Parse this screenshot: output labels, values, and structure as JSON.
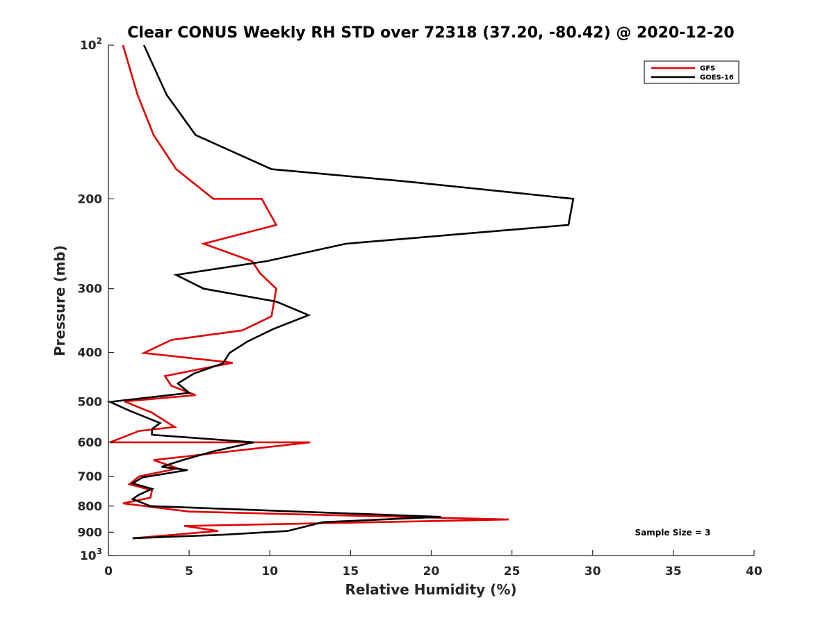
{
  "chart_data": {
    "type": "line",
    "title": "Clear CONUS Weekly RH STD over 72318 (37.20, -80.42) @ 2020-12-20",
    "xlabel": "Relative Humidity (%)",
    "ylabel": "Pressure (mb)",
    "xlim": [
      0,
      40
    ],
    "ylim": [
      100,
      1000
    ],
    "yscale": "log",
    "y_reversed": true,
    "xticks": [
      0,
      5,
      10,
      15,
      20,
      25,
      30,
      35,
      40
    ],
    "yticks": [
      {
        "value": 100,
        "label": "10",
        "sup": "2"
      },
      {
        "value": 200,
        "label": "200"
      },
      {
        "value": 300,
        "label": "300"
      },
      {
        "value": 400,
        "label": "400"
      },
      {
        "value": 500,
        "label": "500"
      },
      {
        "value": 600,
        "label": "600"
      },
      {
        "value": 700,
        "label": "700"
      },
      {
        "value": 800,
        "label": "800"
      },
      {
        "value": 900,
        "label": "900"
      },
      {
        "value": 1000,
        "label": "10",
        "sup": "3"
      }
    ],
    "grid": false,
    "legend_position": "top-right",
    "annotation": "Sample Size = 3",
    "series": [
      {
        "name": "GFS",
        "color": "#e00000",
        "points": [
          [
            0.9,
            100
          ],
          [
            1.8,
            125
          ],
          [
            2.8,
            150
          ],
          [
            4.2,
            175
          ],
          [
            6.5,
            200
          ],
          [
            9.5,
            200
          ],
          [
            10.4,
            225
          ],
          [
            5.9,
            245
          ],
          [
            8.9,
            265
          ],
          [
            9.4,
            280
          ],
          [
            10.4,
            300
          ],
          [
            10.1,
            340
          ],
          [
            8.3,
            362
          ],
          [
            3.9,
            378
          ],
          [
            2.2,
            401
          ],
          [
            7.7,
            419
          ],
          [
            3.5,
            445
          ],
          [
            3.9,
            465
          ],
          [
            5.4,
            485
          ],
          [
            1.0,
            499
          ],
          [
            2.7,
            525
          ],
          [
            4.1,
            560
          ],
          [
            1.9,
            570
          ],
          [
            0.1,
            600
          ],
          [
            12.5,
            600
          ],
          [
            2.8,
            650
          ],
          [
            4.3,
            675
          ],
          [
            1.9,
            700
          ],
          [
            1.3,
            725
          ],
          [
            2.7,
            745
          ],
          [
            2.6,
            770
          ],
          [
            0.9,
            790
          ],
          [
            5.0,
            820
          ],
          [
            24.8,
            850
          ],
          [
            4.7,
            875
          ],
          [
            6.8,
            895
          ],
          [
            1.5,
            925
          ]
        ]
      },
      {
        "name": "GOES-16",
        "color": "#000000",
        "points": [
          [
            2.2,
            100
          ],
          [
            3.6,
            125
          ],
          [
            5.4,
            150
          ],
          [
            10.1,
            175
          ],
          [
            18.5,
            185
          ],
          [
            28.8,
            200
          ],
          [
            28.5,
            225
          ],
          [
            14.7,
            245
          ],
          [
            9.8,
            265
          ],
          [
            4.2,
            282
          ],
          [
            5.9,
            300
          ],
          [
            10.4,
            318
          ],
          [
            12.4,
            338
          ],
          [
            10.2,
            360
          ],
          [
            8.6,
            381
          ],
          [
            7.5,
            401
          ],
          [
            7.1,
            420
          ],
          [
            5.3,
            440
          ],
          [
            4.3,
            460
          ],
          [
            5.0,
            480
          ],
          [
            0.1,
            500
          ],
          [
            1.3,
            520
          ],
          [
            3.2,
            550
          ],
          [
            2.7,
            565
          ],
          [
            2.7,
            580
          ],
          [
            9.0,
            600
          ],
          [
            6.5,
            625
          ],
          [
            4.6,
            650
          ],
          [
            3.3,
            670
          ],
          [
            4.9,
            680
          ],
          [
            2.1,
            703
          ],
          [
            1.5,
            722
          ],
          [
            2.7,
            740
          ],
          [
            1.9,
            760
          ],
          [
            1.5,
            775
          ],
          [
            2.6,
            800
          ],
          [
            20.6,
            840
          ],
          [
            13.3,
            860
          ],
          [
            11.1,
            895
          ],
          [
            7.2,
            910
          ],
          [
            1.5,
            925
          ]
        ]
      }
    ]
  }
}
